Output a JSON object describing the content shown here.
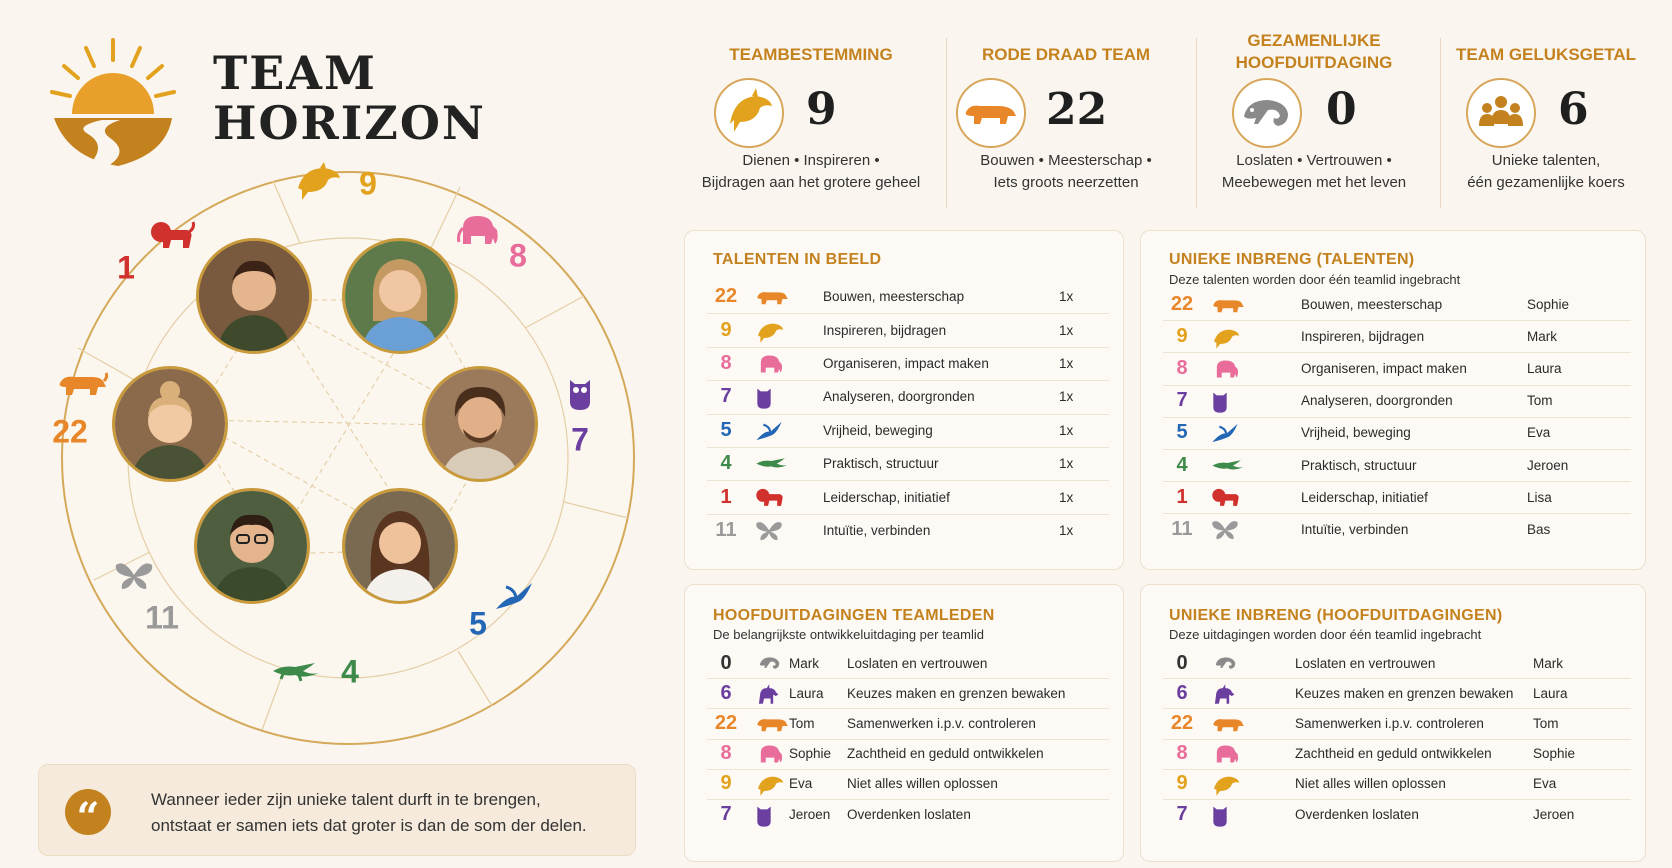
{
  "brand": {
    "line1": "TEAM",
    "line2": "HORIZON"
  },
  "colors": {
    "accent": "#c4821f",
    "n22": "#e8872a",
    "n9": "#e2a21e",
    "n8": "#e86d9a",
    "n7": "#6b3fa0",
    "n5": "#2366b5",
    "n4": "#3e8a4a",
    "n1": "#d0312d",
    "n11": "#9a9a9a",
    "n6": "#6b3fa0",
    "n0": "#333333"
  },
  "wheel": {
    "numbers": [
      "9",
      "8",
      "7",
      "5",
      "4",
      "11",
      "22",
      "1"
    ],
    "animals": [
      "dolphin-icon",
      "elephant-icon",
      "owl-icon",
      "swallow-icon",
      "lizard-icon",
      "butterfly-icon",
      "tiger-icon",
      "lion-icon"
    ]
  },
  "quote": {
    "line1": "Wanneer ieder zijn unieke talent durft in te brengen,",
    "line2": "ontstaat er samen iets dat groter is dan de som der delen."
  },
  "stats": [
    {
      "title1": "TEAMBESTEMMING",
      "title2": "",
      "value": "9",
      "icon": "dolphin-icon",
      "desc1": "Dienen • Inspireren •",
      "desc2": "Bijdragen aan het grotere geheel"
    },
    {
      "title1": "RODE DRAAD TEAM",
      "title2": "",
      "value": "22",
      "icon": "tiger-icon",
      "desc1": "Bouwen • Meesterschap •",
      "desc2": "Iets groots neerzetten"
    },
    {
      "title1": "GEZAMENLIJKE",
      "title2": "HOOFDUITDAGING",
      "value": "0",
      "icon": "chameleon-icon",
      "desc1": "Loslaten • Vertrouwen •",
      "desc2": "Meebewegen met het leven"
    },
    {
      "title1": "TEAM GELUKSGETAL",
      "title2": "",
      "value": "6",
      "icon": "team-icon",
      "desc1": "Unieke talenten,",
      "desc2": "één gezamenlijke koers"
    }
  ],
  "talenten": {
    "title": "TALENTEN IN BEELD",
    "rows": [
      {
        "n": "22",
        "talent": "Bouwen, meesterschap",
        "count": "1x"
      },
      {
        "n": "9",
        "talent": "Inspireren, bijdragen",
        "count": "1x"
      },
      {
        "n": "8",
        "talent": "Organiseren, impact maken",
        "count": "1x"
      },
      {
        "n": "7",
        "talent": "Analyseren, doorgronden",
        "count": "1x"
      },
      {
        "n": "5",
        "talent": "Vrijheid, beweging",
        "count": "1x"
      },
      {
        "n": "4",
        "talent": "Praktisch, structuur",
        "count": "1x"
      },
      {
        "n": "1",
        "talent": "Leiderschap, initiatief",
        "count": "1x"
      },
      {
        "n": "11",
        "talent": "Intuïtie, verbinden",
        "count": "1x"
      }
    ]
  },
  "unieke_talenten": {
    "title": "UNIEKE INBRENG (TALENTEN)",
    "subtitle": "Deze talenten worden door één teamlid ingebracht",
    "rows": [
      {
        "n": "22",
        "talent": "Bouwen, meesterschap",
        "name": "Sophie"
      },
      {
        "n": "9",
        "talent": "Inspireren, bijdragen",
        "name": "Mark"
      },
      {
        "n": "8",
        "talent": "Organiseren, impact maken",
        "name": "Laura"
      },
      {
        "n": "7",
        "talent": "Analyseren, doorgronden",
        "name": "Tom"
      },
      {
        "n": "5",
        "talent": "Vrijheid, beweging",
        "name": "Eva"
      },
      {
        "n": "4",
        "talent": "Praktisch, structuur",
        "name": "Jeroen"
      },
      {
        "n": "1",
        "talent": "Leiderschap, initiatief",
        "name": "Lisa"
      },
      {
        "n": "11",
        "talent": "Intuïtie, verbinden",
        "name": "Bas"
      }
    ]
  },
  "hoofduitdagingen": {
    "title": "HOOFDUITDAGINGEN TEAMLEDEN",
    "subtitle": "De belangrijkste ontwikkeluitdaging per teamlid",
    "rows": [
      {
        "n": "0",
        "name": "Mark",
        "challenge": "Loslaten en vertrouwen"
      },
      {
        "n": "6",
        "name": "Laura",
        "challenge": "Keuzes maken en grenzen bewaken"
      },
      {
        "n": "22",
        "name": "Tom",
        "challenge": "Samenwerken i.p.v. controleren"
      },
      {
        "n": "8",
        "name": "Sophie",
        "challenge": "Zachtheid en geduld ontwikkelen"
      },
      {
        "n": "9",
        "name": "Eva",
        "challenge": "Niet alles willen oplossen"
      },
      {
        "n": "7",
        "name": "Jeroen",
        "challenge": "Overdenken loslaten"
      }
    ]
  },
  "unieke_uitdagingen": {
    "title": "UNIEKE INBRENG (HOOFDUITDAGINGEN)",
    "subtitle": "Deze uitdagingen worden door één teamlid ingebracht",
    "rows": [
      {
        "n": "0",
        "challenge": "Loslaten en vertrouwen",
        "name": "Mark"
      },
      {
        "n": "6",
        "challenge": "Keuzes maken en grenzen bewaken",
        "name": "Laura"
      },
      {
        "n": "22",
        "challenge": "Samenwerken i.p.v. controleren",
        "name": "Tom"
      },
      {
        "n": "8",
        "challenge": "Zachtheid en geduld ontwikkelen",
        "name": "Sophie"
      },
      {
        "n": "9",
        "challenge": "Niet alles willen oplossen",
        "name": "Eva"
      },
      {
        "n": "7",
        "challenge": "Overdenken loslaten",
        "name": "Jeroen"
      }
    ]
  }
}
